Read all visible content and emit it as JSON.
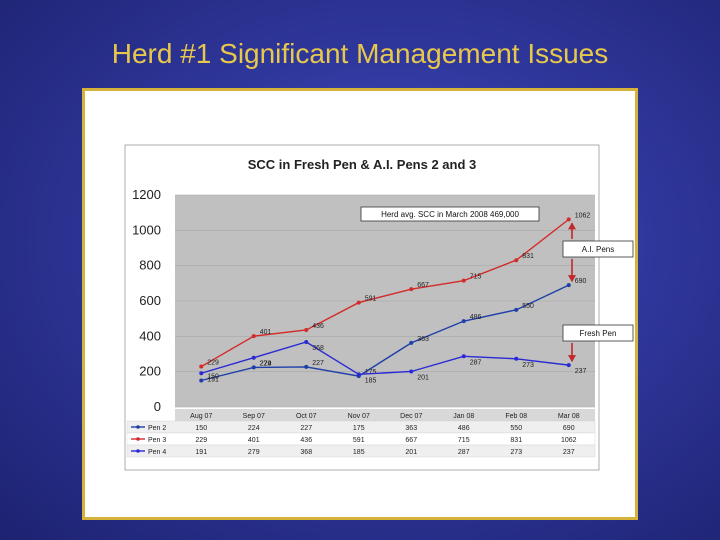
{
  "slide": {
    "title": "Herd #1 Significant Management Issues"
  },
  "colors": {
    "title": "#e8c84a",
    "frame_border": "#d6b23a",
    "plot_bg": "#c0c0c0",
    "arrow": "#c0282a"
  },
  "chart_data": {
    "type": "line",
    "title": "SCC in Fresh Pen & A.I. Pens 2 and 3",
    "categories": [
      "Aug 07",
      "Sep 07",
      "Oct 07",
      "Nov 07",
      "Dec 07",
      "Jan 08",
      "Feb 08",
      "Mar 08"
    ],
    "ylim": [
      0,
      1200
    ],
    "yticks": [
      "0",
      "200",
      "400",
      "600",
      "800",
      "1000",
      "1200"
    ],
    "grid": true,
    "series": [
      {
        "name": "Pen 2",
        "color": "#1f3fa8",
        "values": [
          150,
          224,
          227,
          175,
          363,
          486,
          550,
          690
        ]
      },
      {
        "name": "Pen 3",
        "color": "#d42a2a",
        "values": [
          229,
          401,
          436,
          591,
          667,
          715,
          831,
          1062
        ]
      },
      {
        "name": "Pen 4",
        "color": "#2a2ad4",
        "values": [
          191,
          279,
          368,
          185,
          201,
          287,
          273,
          237
        ]
      }
    ],
    "annotations": [
      {
        "text": "Herd avg. SCC in March 2008 469,000"
      },
      {
        "text": "A.I. Pens"
      },
      {
        "text": "Fresh Pen"
      }
    ]
  }
}
